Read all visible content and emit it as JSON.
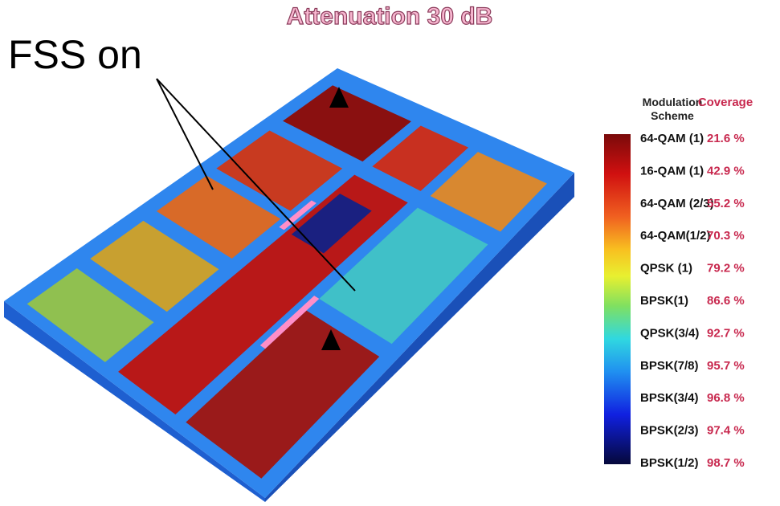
{
  "title": "Attenuation 30 dB",
  "annotation": "FSS on",
  "legend": {
    "header_scheme": "Modulation Scheme",
    "header_coverage": "Coverage",
    "rows": [
      [
        "64-QAM (1)",
        "21.6 %"
      ],
      [
        "16-QAM (1)",
        "42.9 %"
      ],
      [
        "64-QAM (2/3)",
        "55.2 %"
      ],
      [
        "64-QAM(1/2)",
        "70.3 %"
      ],
      [
        "QPSK (1)",
        "79.2 %"
      ],
      [
        "BPSK(1)",
        "86.6 %"
      ],
      [
        "QPSK(3/4)",
        "92.7 %"
      ],
      [
        "BPSK(7/8)",
        "95.7 %"
      ],
      [
        "BPSK(3/4)",
        "96.8 %"
      ],
      [
        "BPSK(2/3)",
        "97.4 %"
      ],
      [
        "BPSK(1/2)",
        "98.7 %"
      ]
    ]
  }
}
